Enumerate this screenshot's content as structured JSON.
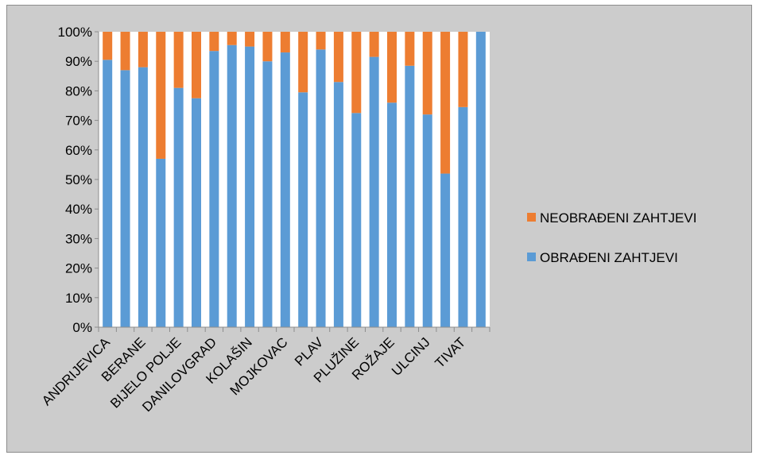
{
  "chart_data": {
    "type": "bar",
    "stacked": true,
    "percent_stacked": true,
    "categories": [
      "ANDRIJEVICA",
      "",
      "BERANE",
      "",
      "BIJELO POLJE",
      "",
      "DANILOVGRAD",
      "",
      "KOLAŠIN",
      "",
      "MOJKOVAC",
      "",
      "PLAV",
      "",
      "PLUŽINE",
      "",
      "ROŽAJE",
      "",
      "ULCINJ",
      "",
      "TIVAT",
      ""
    ],
    "series": [
      {
        "name": "OBRAĐENI ZAHTJEVI",
        "color": "#5b9bd5",
        "values": [
          90.5,
          87,
          88,
          57,
          81,
          77.5,
          93.5,
          95.5,
          95,
          90,
          93,
          79.5,
          94,
          83,
          72.5,
          91.5,
          76,
          88.5,
          72,
          52,
          74.5,
          100
        ]
      },
      {
        "name": "NEOBRAĐENI ZAHTJEVI",
        "color": "#ed7d31",
        "values": [
          9.5,
          13,
          12,
          43,
          19,
          22.5,
          6.5,
          4.5,
          5,
          10,
          7,
          20.5,
          6,
          17,
          27.5,
          8.5,
          24,
          11.5,
          28,
          48,
          25.5,
          0
        ]
      }
    ],
    "ylim": [
      0,
      100
    ],
    "yticks": [
      "0%",
      "10%",
      "20%",
      "30%",
      "40%",
      "50%",
      "60%",
      "70%",
      "80%",
      "90%",
      "100%"
    ],
    "grid": false,
    "legend_position": "right",
    "title": "",
    "xlabel": "",
    "ylabel": ""
  }
}
